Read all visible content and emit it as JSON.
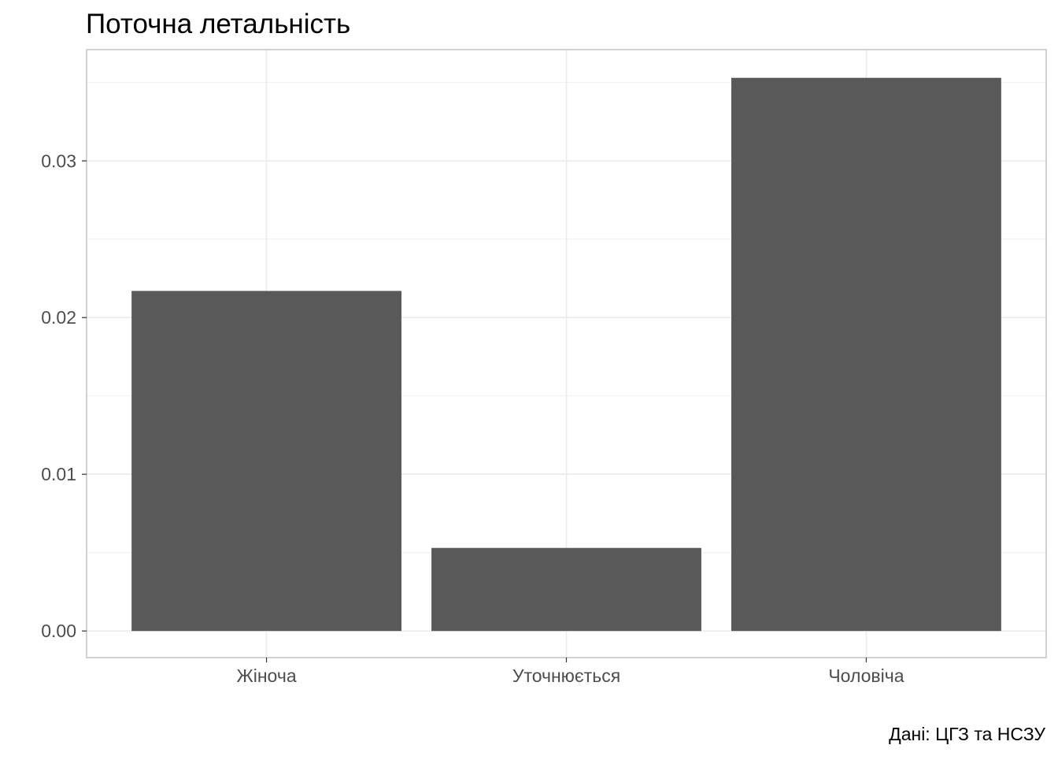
{
  "chart_data": {
    "type": "bar",
    "title": "Поточна летальність",
    "xlabel": "",
    "ylabel": "",
    "caption": "Дані: ЦГЗ та НСЗУ",
    "categories": [
      "Жіноча",
      "Уточнюється",
      "Чоловіча"
    ],
    "values": [
      0.0217,
      0.0053,
      0.0353
    ],
    "ylim": [
      -0.0017,
      0.0371
    ],
    "y_ticks": [
      0.0,
      0.01,
      0.02,
      0.03
    ],
    "y_tick_labels": [
      "0.00",
      "0.01",
      "0.02",
      "0.03"
    ],
    "grid": true,
    "legend": "none",
    "bar_color": "#595959",
    "grid_color": "#ebebeb",
    "panel_border_color": "#b3b3b3"
  }
}
